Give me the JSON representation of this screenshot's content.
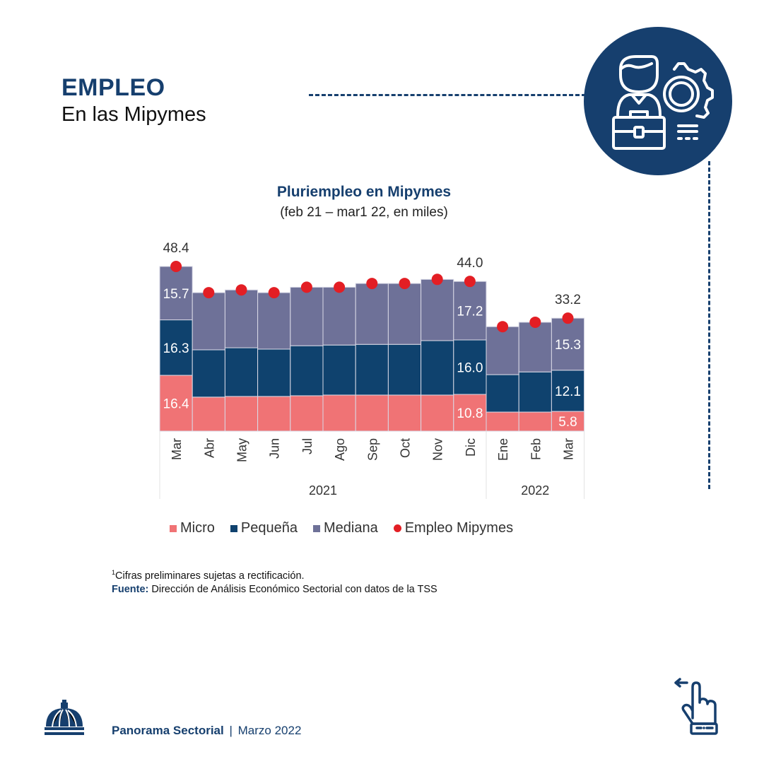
{
  "header": {
    "title": "EMPLEO",
    "subtitle": "En las Mipymes",
    "badge_icon": "businessman-gear-briefcase-icon"
  },
  "colors": {
    "brand": "#163f6e",
    "micro": "#f07375",
    "pequena": "#0f426e",
    "mediana": "#6e7198",
    "total_dot": "#e31e24"
  },
  "chart_data": {
    "type": "bar",
    "stacked": true,
    "title": "Pluriempleo en Mipymes",
    "subtitle": "(feb 21 – mar1 22, en miles)",
    "xlabel": "",
    "ylabel": "",
    "ylim": [
      0,
      50
    ],
    "grid": false,
    "legend_position": "bottom",
    "categories": [
      "Mar",
      "Abr",
      "May",
      "Jun",
      "Jul",
      "Ago",
      "Sep",
      "Oct",
      "Nov",
      "Dic",
      "Ene",
      "Feb",
      "Mar"
    ],
    "groups": [
      {
        "label": "2021",
        "count": 10
      },
      {
        "label": "2022",
        "count": 3
      }
    ],
    "series": [
      {
        "name": "Micro",
        "kind": "bar",
        "values": [
          16.4,
          10.0,
          10.2,
          10.2,
          10.4,
          10.6,
          10.6,
          10.6,
          10.6,
          10.8,
          5.6,
          5.6,
          5.8
        ]
      },
      {
        "name": "Pequeña",
        "kind": "bar",
        "values": [
          16.3,
          13.9,
          14.3,
          13.9,
          14.7,
          14.7,
          14.9,
          14.9,
          16.0,
          16.0,
          11.0,
          11.8,
          12.1
        ]
      },
      {
        "name": "Mediana",
        "kind": "bar",
        "values": [
          15.7,
          16.8,
          17.0,
          16.6,
          17.2,
          17.0,
          17.9,
          17.9,
          18.0,
          17.2,
          14.1,
          14.6,
          15.3
        ]
      },
      {
        "name": "Empleo Mipymes",
        "kind": "point",
        "values": [
          48.4,
          40.7,
          41.5,
          40.7,
          42.3,
          42.3,
          43.4,
          43.4,
          44.6,
          44.0,
          30.7,
          32.0,
          33.2
        ]
      }
    ],
    "data_labels": [
      {
        "index": 0,
        "series": "Micro",
        "text": "16.4"
      },
      {
        "index": 0,
        "series": "Pequeña",
        "text": "16.3"
      },
      {
        "index": 0,
        "series": "Mediana",
        "text": "15.7"
      },
      {
        "index": 0,
        "series": "Empleo Mipymes",
        "text": "48.4"
      },
      {
        "index": 9,
        "series": "Micro",
        "text": "10.8"
      },
      {
        "index": 9,
        "series": "Pequeña",
        "text": "16.0"
      },
      {
        "index": 9,
        "series": "Mediana",
        "text": "17.2"
      },
      {
        "index": 9,
        "series": "Empleo Mipymes",
        "text": "44.0"
      },
      {
        "index": 12,
        "series": "Micro",
        "text": "5.8"
      },
      {
        "index": 12,
        "series": "Pequeña",
        "text": "12.1"
      },
      {
        "index": 12,
        "series": "Mediana",
        "text": "15.3"
      },
      {
        "index": 12,
        "series": "Empleo Mipymes",
        "text": "33.2"
      }
    ],
    "legend": [
      "Micro",
      "Pequeña",
      "Mediana",
      "Empleo Mipymes"
    ]
  },
  "notes": {
    "footnote_mark": "1",
    "footnote": "Cifras preliminares sujetas a rectificación.",
    "source_label": "Fuente:",
    "source_text": " Dirección de Análisis Económico Sectorial con datos de la TSS"
  },
  "footer": {
    "logo_icon": "dome-logo-icon",
    "brand": "Panorama Sectorial",
    "separator": "|",
    "date": "Marzo 2022",
    "nav_icon": "swipe-left-hand-icon"
  }
}
